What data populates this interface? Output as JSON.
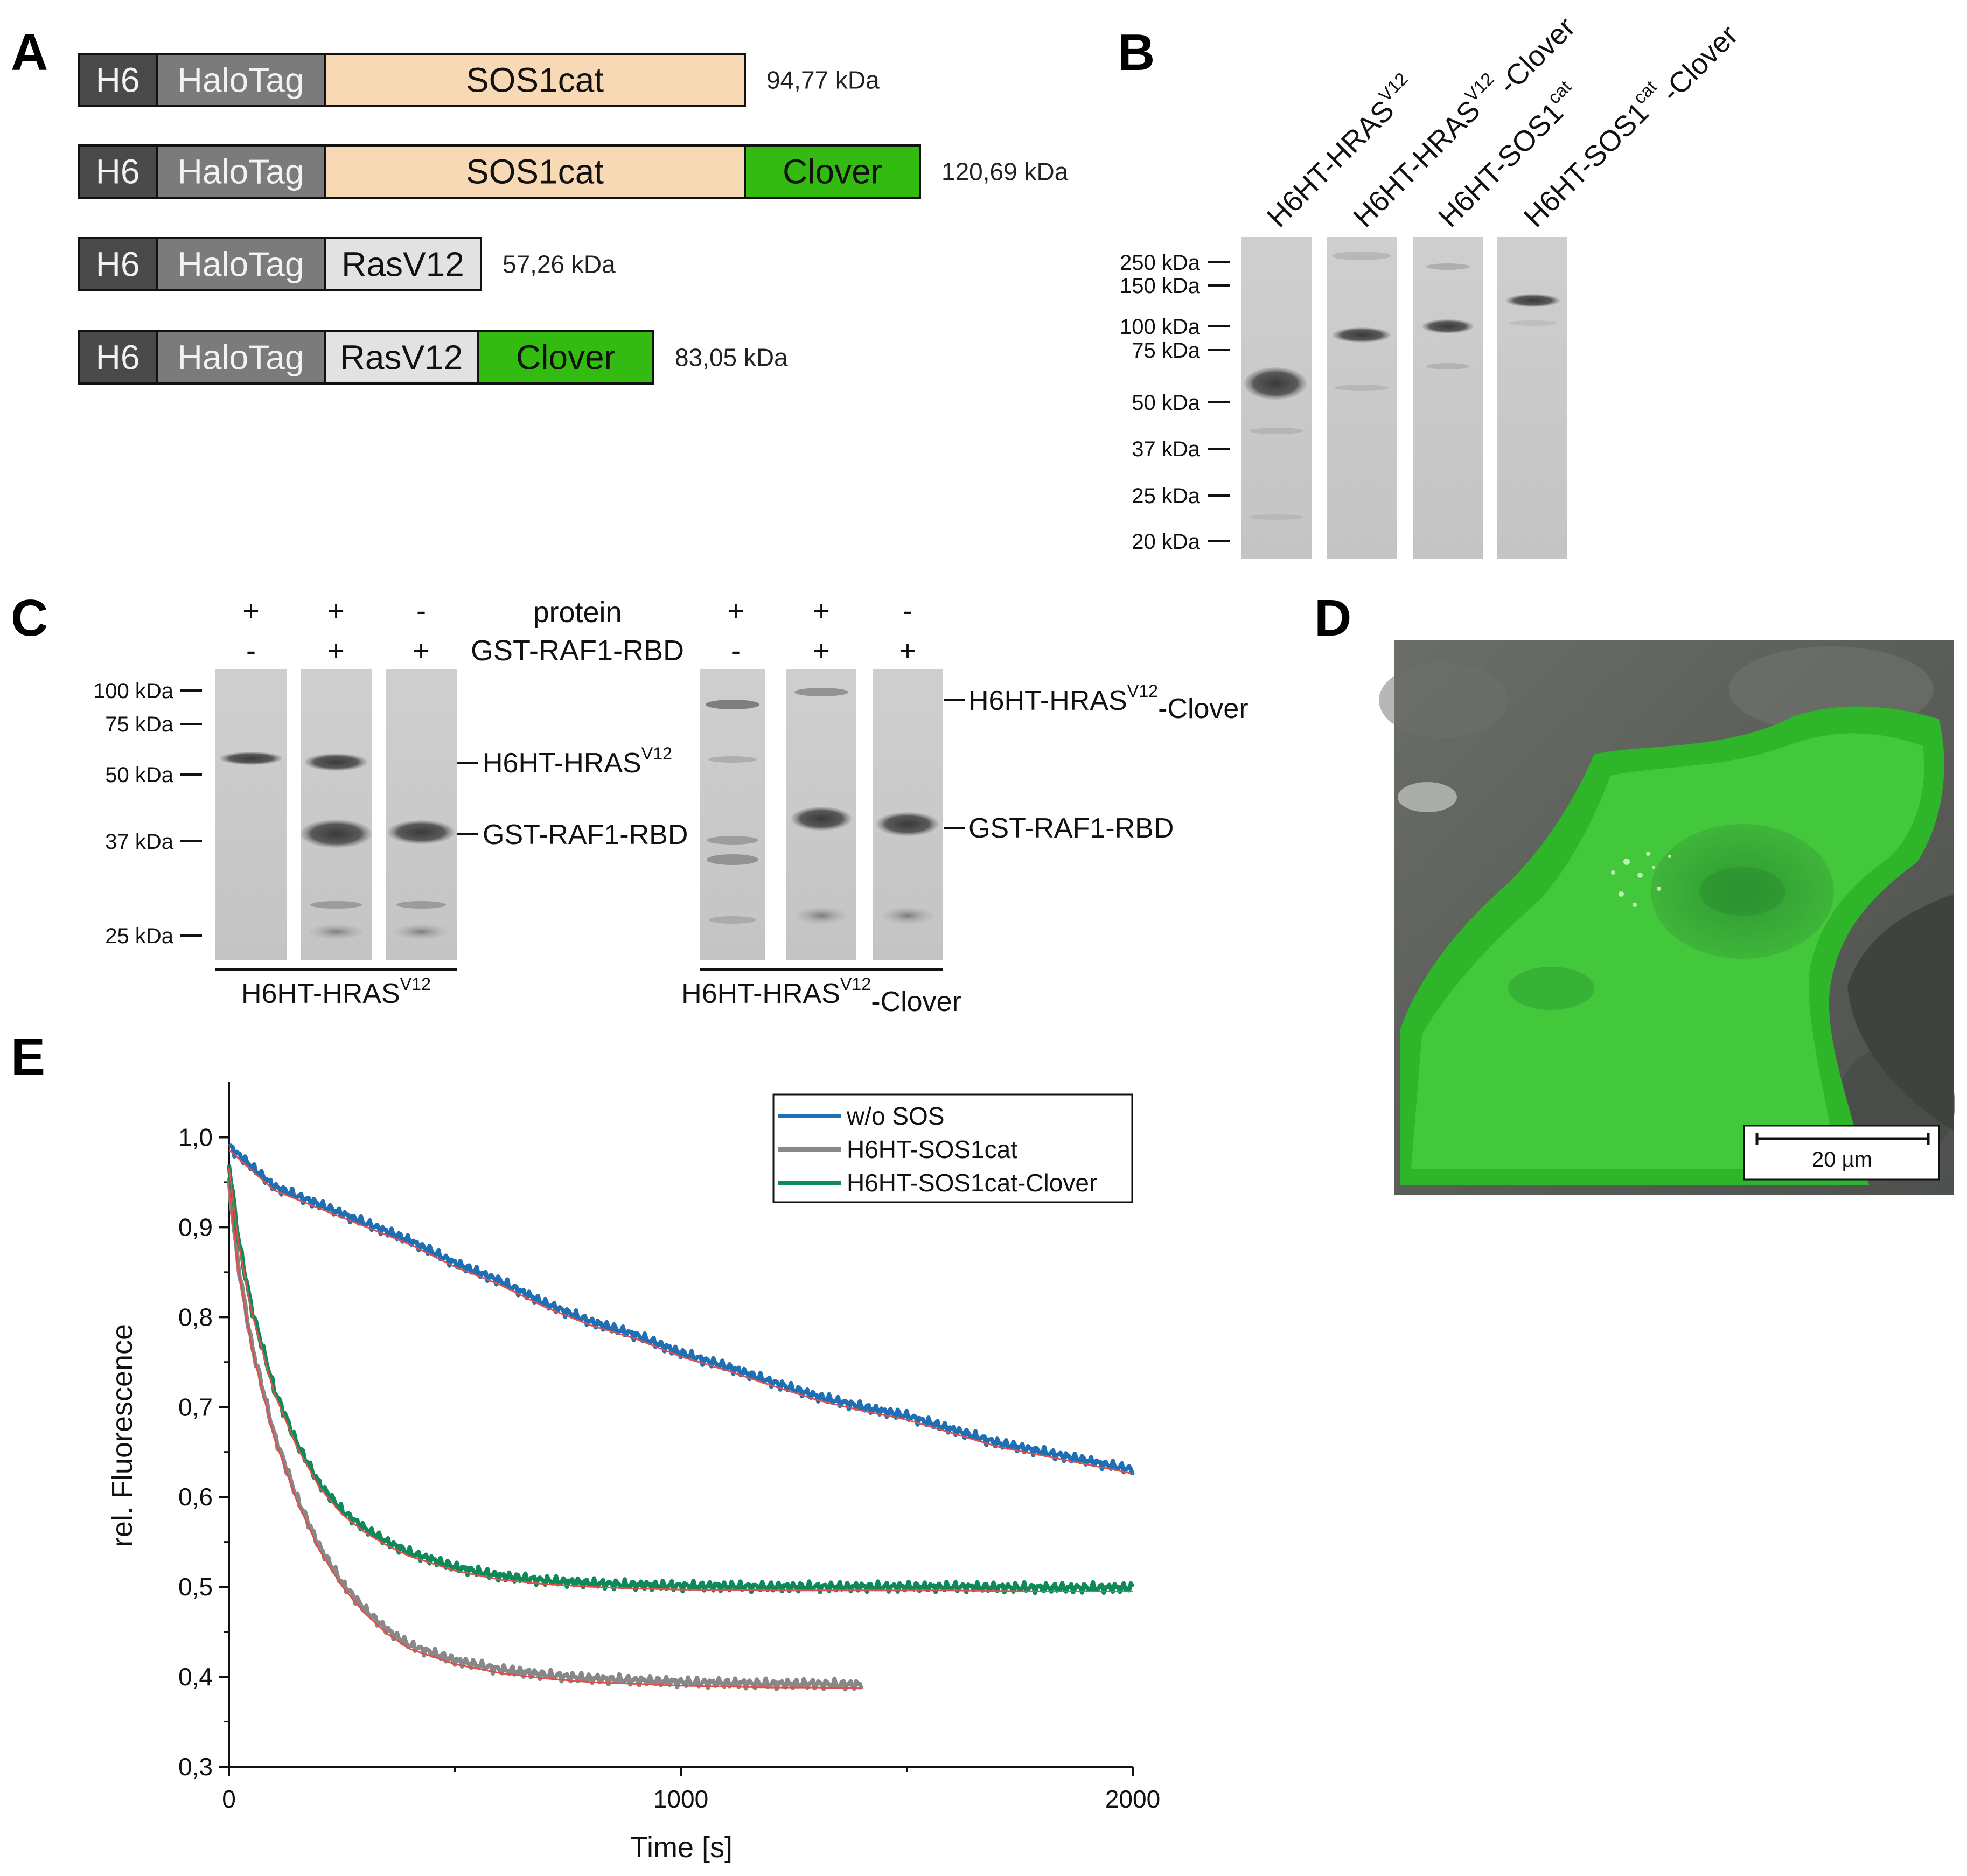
{
  "panels": {
    "A": "A",
    "B": "B",
    "C": "C",
    "D": "D",
    "E": "E"
  },
  "constructs": [
    {
      "segments": [
        "H6",
        "HaloTag",
        "SOS1cat"
      ],
      "mass": "94,77 kDa"
    },
    {
      "segments": [
        "H6",
        "HaloTag",
        "SOS1cat",
        "Clover"
      ],
      "mass": "120,69 kDa"
    },
    {
      "segments": [
        "H6",
        "HaloTag",
        "RasV12"
      ],
      "mass": "57,26 kDa"
    },
    {
      "segments": [
        "H6",
        "HaloTag",
        "RasV12",
        "Clover"
      ],
      "mass": "83,05 kDa"
    }
  ],
  "segment_colors": {
    "H6": "#4a4a4a",
    "HaloTag": "#7b7b7b",
    "SOS1cat": "#f8d9b6",
    "RasV12": "#e2e2e2",
    "Clover": "#33bb11"
  },
  "gel_b": {
    "lanes": [
      {
        "base": "H6HT-HRAS",
        "sup": "V12",
        "suffix": ""
      },
      {
        "base": "H6HT-HRAS",
        "sup": "V12",
        "suffix": "-Clover"
      },
      {
        "base": "H6HT-SOS1",
        "sup": "cat",
        "suffix": ""
      },
      {
        "base": "H6HT-SOS1",
        "sup": "cat",
        "suffix": "-Clover"
      }
    ],
    "markers": [
      "250 kDa",
      "150 kDa",
      "100 kDa",
      "75 kDa",
      "50 kDa",
      "37 kDa",
      "25 kDa",
      "20 kDa"
    ]
  },
  "gel_c": {
    "row_protein": {
      "label": "protein",
      "left": [
        "+",
        "+",
        "-"
      ],
      "right": [
        "+",
        "+",
        "-"
      ]
    },
    "row_gst": {
      "label": "GST-RAF1-RBD",
      "left": [
        "-",
        "+",
        "+"
      ],
      "right": [
        "-",
        "+",
        "+"
      ]
    },
    "markers": [
      "100 kDa",
      "75 kDa",
      "50 kDa",
      "37 kDa",
      "25 kDa"
    ],
    "left_band_labels": [
      {
        "base": "H6HT-HRAS",
        "sup": "V12",
        "suffix": ""
      },
      {
        "base": "GST-RAF1-RBD",
        "sup": "",
        "suffix": ""
      }
    ],
    "right_band_labels": [
      {
        "base": "H6HT-HRAS",
        "sup": "V12",
        "suffix": "-Clover"
      },
      {
        "base": "GST-RAF1-RBD",
        "sup": "",
        "suffix": ""
      }
    ],
    "left_group": {
      "base": "H6HT-HRAS",
      "sup": "V12",
      "suffix": ""
    },
    "right_group": {
      "base": "H6HT-HRAS",
      "sup": "V12",
      "suffix": "-Clover"
    }
  },
  "micrograph": {
    "scale_bar": "20 µm"
  },
  "chart_data": {
    "type": "line",
    "xlabel": "Time [s]",
    "ylabel": "rel. Fluorescence",
    "xlim": [
      0,
      2000
    ],
    "ylim": [
      0.3,
      1.05
    ],
    "xticks": [
      "0",
      "1000",
      "2000"
    ],
    "yticks": [
      "0,3",
      "0,4",
      "0,5",
      "0,6",
      "0,7",
      "0,8",
      "0,9",
      "1,0"
    ],
    "legend_position": "top-right",
    "series": [
      {
        "name": "w/o SOS",
        "color": "#1f6fb5",
        "x": [
          0,
          100,
          200,
          300,
          400,
          500,
          600,
          700,
          800,
          900,
          1000,
          1100,
          1200,
          1300,
          1400,
          1500,
          1600,
          1700,
          1800,
          1900,
          2000
        ],
        "y": [
          0.99,
          0.945,
          0.925,
          0.905,
          0.885,
          0.86,
          0.84,
          0.815,
          0.795,
          0.78,
          0.76,
          0.745,
          0.728,
          0.712,
          0.7,
          0.69,
          0.675,
          0.66,
          0.65,
          0.64,
          0.63
        ]
      },
      {
        "name": "H6HT-SOS1cat",
        "color": "#888888",
        "x": [
          0,
          20,
          50,
          100,
          150,
          200,
          250,
          300,
          350,
          400,
          500,
          600,
          700,
          800,
          900,
          1000,
          1100,
          1200,
          1300,
          1400
        ],
        "y": [
          0.95,
          0.86,
          0.77,
          0.67,
          0.6,
          0.545,
          0.505,
          0.475,
          0.452,
          0.435,
          0.418,
          0.408,
          0.402,
          0.398,
          0.396,
          0.394,
          0.393,
          0.392,
          0.392,
          0.391
        ]
      },
      {
        "name": "H6HT-SOS1cat-Clover",
        "color": "#0e8a5a",
        "x": [
          0,
          20,
          50,
          100,
          150,
          200,
          250,
          300,
          350,
          400,
          500,
          600,
          700,
          800,
          900,
          1000,
          1200,
          1400,
          1600,
          1800,
          2000
        ],
        "y": [
          0.97,
          0.89,
          0.81,
          0.72,
          0.66,
          0.615,
          0.585,
          0.565,
          0.55,
          0.538,
          0.522,
          0.512,
          0.507,
          0.504,
          0.502,
          0.501,
          0.5,
          0.5,
          0.5,
          0.499,
          0.499
        ]
      }
    ],
    "fit_color": "#e0504a"
  }
}
